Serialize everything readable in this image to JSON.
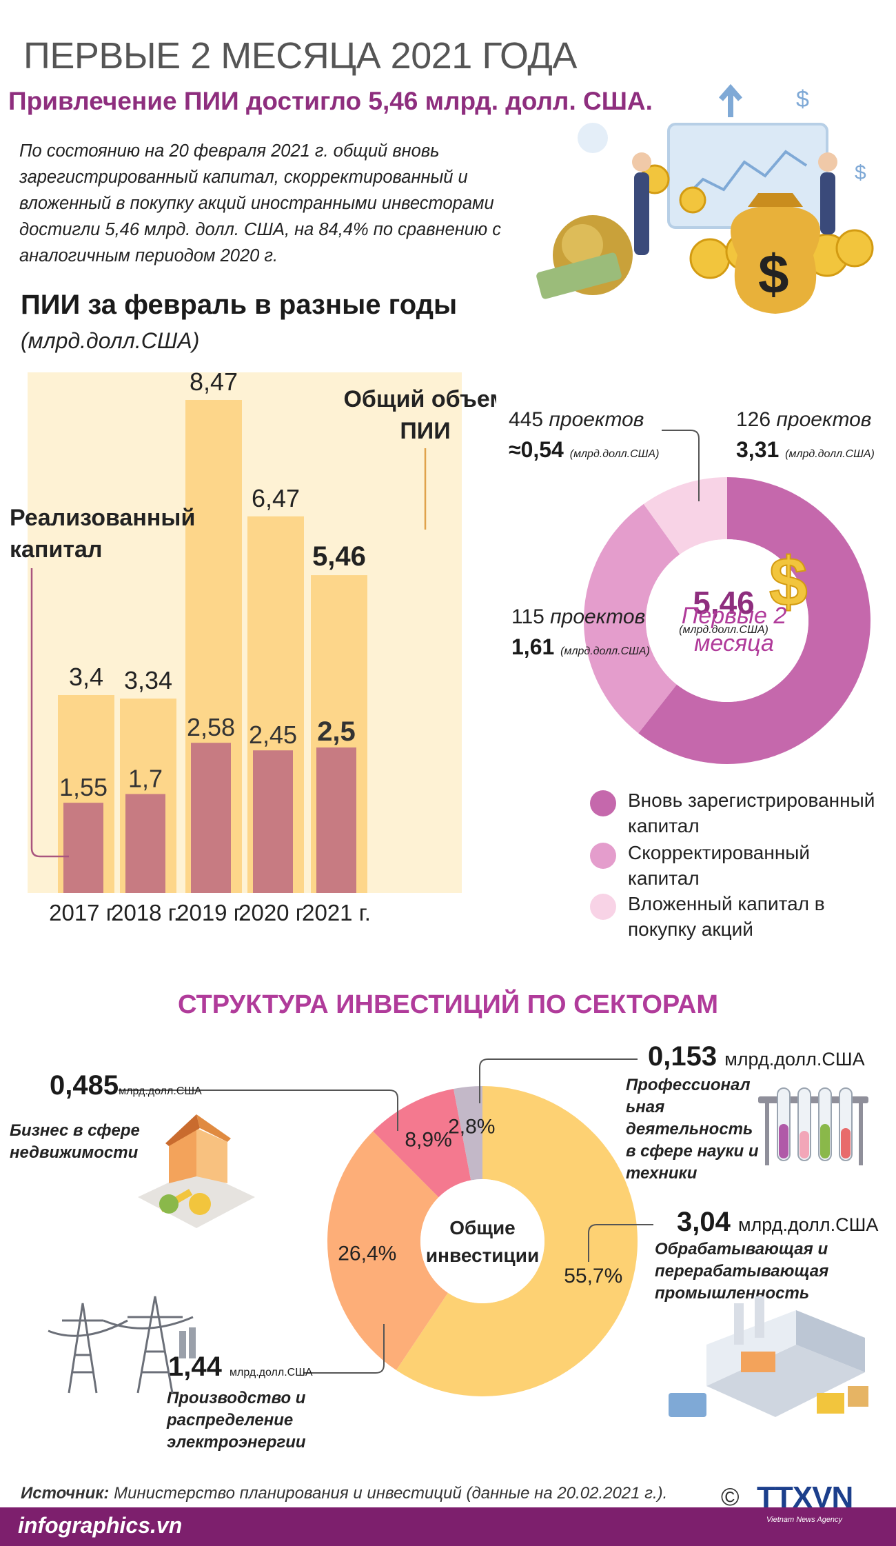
{
  "header": {
    "title": "ПЕРВЫЕ 2 МЕСЯЦА 2021 ГОДА",
    "subtitle": "Привлечение ПИИ достигло 5,46 млрд. долл. США.",
    "intro": "По состоянию на 20 февраля 2021 г. общий вновь зарегистрированный капитал, скорректированный и вложенный в покупку акций иностранными инвесторами достигли 5,46 млрд. долл. США, на 84,4% по сравнению с аналогичным периодом 2020 г."
  },
  "colors": {
    "accent": "#8e2e7e",
    "section": "#b03b9a",
    "bar_total": "#fdd68a",
    "bar_realized": "#c77b82",
    "bar_bg": "#fef2d4",
    "new_capital": "#c568ac",
    "adjusted": "#e49dcc",
    "shares": "#f8d3e6"
  },
  "chart_data": [
    {
      "type": "bar",
      "title": "ПИИ за февраль в разные годы",
      "unit": "(млрд.долл.США)",
      "categories": [
        "2017 г.",
        "2018 г.",
        "2019 г.",
        "2020 г.",
        "2021 г."
      ],
      "series": [
        {
          "name": "Общий объем ПИИ",
          "values": [
            3.4,
            3.34,
            8.47,
            6.47,
            5.46
          ],
          "labels": [
            "3,4",
            "3,34",
            "8,47",
            "6,47",
            "5,46"
          ]
        },
        {
          "name": "Реализованный капитал",
          "values": [
            1.55,
            1.7,
            2.58,
            2.45,
            2.5
          ],
          "labels": [
            "1,55",
            "1,7",
            "2,58",
            "2,45",
            "2,5"
          ]
        }
      ],
      "series_labels": {
        "total": [
          "Общий объем",
          "ПИИ"
        ],
        "realized": [
          "Реализованный",
          "капитал"
        ]
      },
      "ylim": [
        0,
        8.47
      ]
    },
    {
      "type": "pie",
      "center_value": "5,46",
      "center_unit": "(млрд.долл.США)",
      "center_caption": [
        "Первые 2",
        "месяца"
      ],
      "slices": [
        {
          "name": "Вновь зарегистрированный капитал",
          "value": 3.31,
          "value_label": "3,31",
          "count_label": "126",
          "projects_word": "проектов",
          "unit": "(млрд.долл.США)",
          "prefix": ""
        },
        {
          "name": "Скорректированный капитал",
          "value": 1.61,
          "value_label": "1,61",
          "count_label": "115",
          "projects_word": "проектов",
          "unit": "(млрд.долл.США)",
          "prefix": ""
        },
        {
          "name": "Вложенный капитал в покупку акций",
          "value": 0.54,
          "value_label": "0,54",
          "count_label": "445",
          "projects_word": "проектов",
          "unit": "(млрд.долл.США)",
          "prefix": "≈"
        }
      ],
      "legend": [
        [
          "Вновь зарегистрированный",
          "капитал"
        ],
        [
          "Скорректированный",
          "капитал"
        ],
        [
          "Вложенный капитал в",
          "покупку акций"
        ]
      ]
    },
    {
      "type": "pie",
      "title": "СТРУКТУРА ИНВЕСТИЦИЙ ПО СЕКТОРАМ",
      "center_label": [
        "Общие",
        "инвестиции"
      ],
      "slices": [
        {
          "name": "Обрабатывающая и перерабатывающая промышленность",
          "name_lines": [
            "Обрабатывающая и",
            "перерабатывающая",
            "промышленность"
          ],
          "percent": 55.7,
          "percent_label": "55,7%",
          "value_label": "3,04",
          "unit": "млрд.долл.США",
          "color": "#fdd173"
        },
        {
          "name": "Производство и распределение электроэнергии",
          "name_lines": [
            "Производство и",
            "распределение",
            "электроэнергии"
          ],
          "percent": 26.4,
          "percent_label": "26,4%",
          "value_label": "1,44",
          "unit": "млрд.долл.США",
          "color": "#fdae78"
        },
        {
          "name": "Бизнес в сфере недвижимости",
          "name_lines": [
            "Бизнес в сфере",
            "недвижимости"
          ],
          "percent": 8.9,
          "percent_label": "8,9%",
          "value_label": "0,485",
          "unit": "млрд.долл.США",
          "color": "#f4798f"
        },
        {
          "name": "Профессиональная деятельность в сфере науки и техники",
          "name_lines": [
            "Профессионал",
            "ьная",
            "деятельность",
            "в сфере науки и",
            "техники"
          ],
          "percent": 2.8,
          "percent_label": "2,8%",
          "value_label": "0,153",
          "unit": "млрд.долл.США",
          "color": "#c3b8c8"
        }
      ]
    }
  ],
  "footer": {
    "source_label": "Источник:",
    "source_text": " Министерство планирования и инвестиций (данные на 20.02.2021 г.).",
    "site": "infographics.vn",
    "copyright": "©",
    "logo": "TTXVN",
    "logo_sub": "Vietnam News Agency"
  }
}
